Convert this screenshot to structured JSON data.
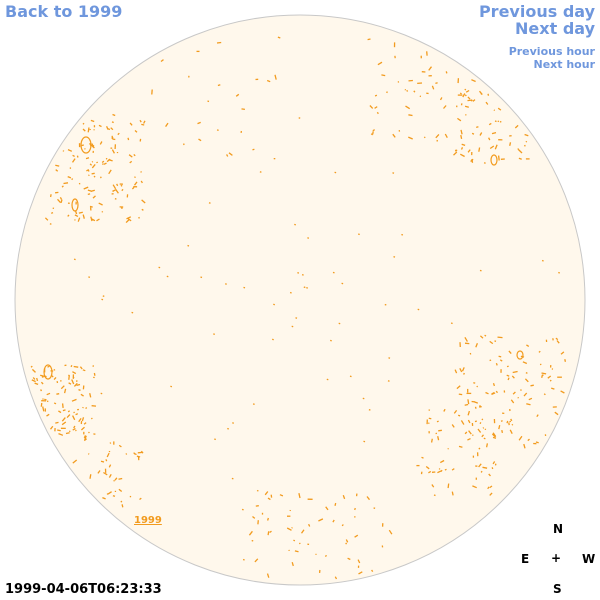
{
  "nav": {
    "back": "Back to 1999",
    "previous_day": "Previous day",
    "next_day": "Next day",
    "previous_hour": "Previous hour",
    "next_hour": "Next hour"
  },
  "year_label": "1999",
  "timestamp": "1999-04-06T06:23:33",
  "compass": {
    "north": "N",
    "south": "S",
    "east": "E",
    "west": "W",
    "center": "+"
  },
  "colors": {
    "link": "#6f97dd",
    "disk_fill": "#fff8ec",
    "disk_border": "#c8c8c8",
    "feature": "#f29b1e"
  }
}
